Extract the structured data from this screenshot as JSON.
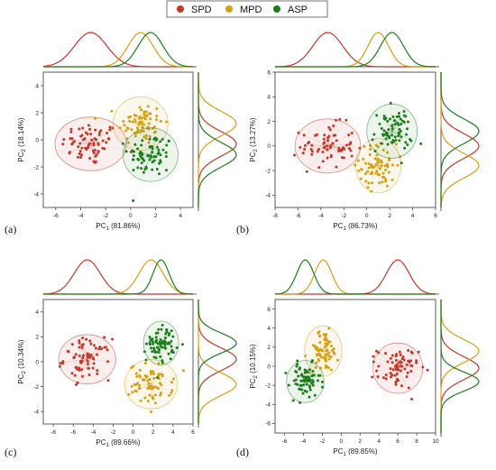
{
  "legend": {
    "items": [
      {
        "label": "SPD",
        "color": "#c0392b"
      },
      {
        "label": "MPD",
        "color": "#d4a017"
      },
      {
        "label": "ASP",
        "color": "#1e7d1e"
      }
    ]
  },
  "chart_data": [
    {
      "type": "scatter",
      "panel_label": "(a)",
      "xlabel": "PC₁ (81.86%)",
      "ylabel": "PC₂ (18.14%)",
      "xlim": [
        -7,
        5
      ],
      "ylim": [
        -5,
        5
      ],
      "xticks": [
        -6,
        -4,
        -2,
        0,
        2,
        4
      ],
      "yticks": [
        -4,
        -2,
        0,
        2,
        4
      ],
      "series": [
        {
          "name": "SPD",
          "color": "#c0392b",
          "center": [
            -3.2,
            -0.3
          ],
          "spread": [
            1.3,
            0.9
          ],
          "n": 70
        },
        {
          "name": "MPD",
          "color": "#d4a017",
          "center": [
            0.8,
            1.2
          ],
          "spread": [
            1.0,
            0.9
          ],
          "n": 70
        },
        {
          "name": "ASP",
          "color": "#1e7d1e",
          "center": [
            1.6,
            -1.1
          ],
          "spread": [
            1.0,
            0.9
          ],
          "n": 70
        }
      ]
    },
    {
      "type": "scatter",
      "panel_label": "(b)",
      "xlabel": "PC₁ (86.73%)",
      "ylabel": "PC₂ (13.27%)",
      "xlim": [
        -8,
        6
      ],
      "ylim": [
        -5,
        6
      ],
      "xticks": [
        -8,
        -6,
        -4,
        -2,
        0,
        2,
        4,
        6
      ],
      "yticks": [
        -4,
        -2,
        0,
        2,
        4,
        6
      ],
      "series": [
        {
          "name": "SPD",
          "color": "#c0392b",
          "center": [
            -3.4,
            0.0
          ],
          "spread": [
            1.3,
            1.0
          ],
          "n": 70
        },
        {
          "name": "MPD",
          "color": "#d4a017",
          "center": [
            1.0,
            -1.6
          ],
          "spread": [
            0.9,
            1.0
          ],
          "n": 70
        },
        {
          "name": "ASP",
          "color": "#1e7d1e",
          "center": [
            2.2,
            1.2
          ],
          "spread": [
            1.0,
            1.0
          ],
          "n": 70
        }
      ]
    },
    {
      "type": "scatter",
      "panel_label": "(c)",
      "xlabel": "PC₁ (89.66%)",
      "ylabel": "PC₂ (10.34%)",
      "xlim": [
        -9,
        6
      ],
      "ylim": [
        -5,
        5
      ],
      "xticks": [
        -8,
        -6,
        -4,
        -2,
        0,
        2,
        4,
        6
      ],
      "yticks": [
        -4,
        -2,
        0,
        2,
        4
      ],
      "series": [
        {
          "name": "SPD",
          "color": "#c0392b",
          "center": [
            -4.6,
            0.2
          ],
          "spread": [
            1.3,
            0.9
          ],
          "n": 70
        },
        {
          "name": "MPD",
          "color": "#d4a017",
          "center": [
            1.8,
            -1.8
          ],
          "spread": [
            1.2,
            0.9
          ],
          "n": 70
        },
        {
          "name": "ASP",
          "color": "#1e7d1e",
          "center": [
            2.8,
            1.5
          ],
          "spread": [
            0.8,
            0.8
          ],
          "n": 70
        }
      ]
    },
    {
      "type": "scatter",
      "panel_label": "(d)",
      "xlabel": "PC₁ (89.85%)",
      "ylabel": "PC₂ (10.15%)",
      "xlim": [
        -7,
        10
      ],
      "ylim": [
        -7,
        7
      ],
      "xticks": [
        -6,
        -4,
        -2,
        0,
        2,
        4,
        6,
        8,
        10
      ],
      "yticks": [
        -6,
        -4,
        -2,
        0,
        2,
        4,
        6
      ],
      "series": [
        {
          "name": "SPD",
          "color": "#c0392b",
          "center": [
            6.0,
            -0.2
          ],
          "spread": [
            1.2,
            1.2
          ],
          "n": 70
        },
        {
          "name": "MPD",
          "color": "#d4a017",
          "center": [
            -1.9,
            1.6
          ],
          "spread": [
            0.9,
            1.2
          ],
          "n": 70
        },
        {
          "name": "ASP",
          "color": "#1e7d1e",
          "center": [
            -3.8,
            -1.6
          ],
          "spread": [
            0.9,
            1.0
          ],
          "n": 70
        }
      ]
    }
  ]
}
